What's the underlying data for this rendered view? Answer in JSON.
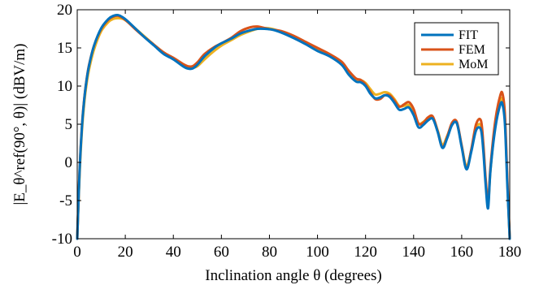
{
  "chart_data": {
    "type": "line",
    "xlabel": "Inclination angle θ (degrees)",
    "ylabel": "|E_θ^ref(90°, θ)| (dBV/m)",
    "xlim": [
      0,
      180
    ],
    "ylim": [
      -10,
      20
    ],
    "xticks": [
      0,
      20,
      40,
      60,
      80,
      100,
      120,
      140,
      160,
      180
    ],
    "yticks": [
      -10,
      -5,
      0,
      5,
      10,
      15,
      20
    ],
    "grid": false,
    "legend_position": "top-right",
    "series": [
      {
        "name": "FIT",
        "color": "#0072BD",
        "x": [
          0,
          1,
          2,
          3,
          4,
          5,
          7,
          10,
          13,
          15,
          17,
          19,
          21,
          24,
          28,
          32,
          36,
          40,
          44,
          46,
          48,
          50,
          53,
          57,
          60,
          64,
          68,
          72,
          75,
          78,
          81,
          85,
          90,
          95,
          100,
          105,
          110,
          113,
          116,
          118,
          120,
          122,
          124,
          126,
          128,
          130,
          132,
          134,
          136,
          138,
          140,
          142,
          144,
          146,
          148,
          150,
          152,
          154,
          156,
          158,
          160,
          162,
          164,
          166,
          168,
          169,
          170,
          171,
          172,
          174,
          176,
          177,
          178,
          179,
          180
        ],
        "values": [
          -10,
          -1.0,
          4.8,
          8.5,
          11.0,
          12.8,
          15.3,
          17.6,
          18.8,
          19.2,
          19.3,
          19.0,
          18.5,
          17.6,
          16.4,
          15.3,
          14.2,
          13.5,
          12.6,
          12.3,
          12.3,
          12.8,
          13.9,
          15.0,
          15.6,
          16.2,
          16.9,
          17.3,
          17.5,
          17.5,
          17.4,
          17.0,
          16.3,
          15.5,
          14.6,
          13.9,
          12.8,
          11.5,
          10.6,
          10.5,
          10.0,
          9.0,
          8.4,
          8.5,
          8.8,
          8.6,
          7.8,
          6.9,
          7.0,
          7.2,
          6.2,
          4.6,
          4.9,
          5.5,
          5.7,
          4.0,
          1.9,
          3.2,
          4.9,
          5.1,
          2.0,
          -0.9,
          1.4,
          4.2,
          4.3,
          1.5,
          -3.0,
          -6.0,
          -1.0,
          4.5,
          7.5,
          7.6,
          5.0,
          -3.0,
          -10
        ]
      },
      {
        "name": "FEM",
        "color": "#D95319",
        "x": [
          0,
          1,
          2,
          3,
          4,
          5,
          7,
          10,
          13,
          15,
          17,
          19,
          21,
          24,
          28,
          32,
          36,
          40,
          44,
          46,
          48,
          50,
          53,
          57,
          60,
          64,
          68,
          72,
          75,
          78,
          81,
          85,
          90,
          95,
          100,
          105,
          110,
          113,
          116,
          118,
          120,
          122,
          124,
          126,
          128,
          130,
          132,
          134,
          136,
          138,
          140,
          142,
          144,
          146,
          148,
          150,
          152,
          154,
          156,
          158,
          160,
          162,
          164,
          166,
          168,
          169,
          170,
          171,
          172,
          174,
          176,
          177,
          178,
          179,
          180
        ],
        "values": [
          -10,
          -0.8,
          5.0,
          8.6,
          11.1,
          12.9,
          15.3,
          17.5,
          18.7,
          19.1,
          19.2,
          18.9,
          18.4,
          17.5,
          16.4,
          15.4,
          14.4,
          13.7,
          12.9,
          12.6,
          12.6,
          13.1,
          14.2,
          15.1,
          15.6,
          16.3,
          17.2,
          17.7,
          17.8,
          17.6,
          17.4,
          17.2,
          16.6,
          15.8,
          15.0,
          14.2,
          13.2,
          12.0,
          11.0,
          10.8,
          10.2,
          9.2,
          8.3,
          8.3,
          8.8,
          8.8,
          8.1,
          7.3,
          7.6,
          7.9,
          7.0,
          5.1,
          5.2,
          5.9,
          6.0,
          4.1,
          2.0,
          3.4,
          5.2,
          5.3,
          2.2,
          -0.8,
          1.7,
          5.0,
          5.5,
          2.5,
          -2.2,
          -5.3,
          -0.5,
          5.5,
          8.7,
          9.0,
          6.3,
          -2.0,
          -10
        ]
      },
      {
        "name": "MoM",
        "color": "#EDB120",
        "x": [
          0,
          1,
          2,
          3,
          4,
          5,
          7,
          10,
          13,
          15,
          17,
          19,
          21,
          24,
          28,
          32,
          36,
          40,
          44,
          46,
          48,
          50,
          53,
          57,
          60,
          64,
          68,
          72,
          75,
          78,
          81,
          85,
          90,
          95,
          100,
          105,
          110,
          113,
          116,
          118,
          120,
          122,
          124,
          126,
          128,
          130,
          132,
          134,
          136,
          138,
          140,
          142,
          144,
          146,
          148,
          150,
          152,
          154,
          156,
          158,
          160,
          162,
          164,
          166,
          168,
          169,
          170,
          171,
          172,
          174,
          176,
          177,
          178,
          179,
          180
        ],
        "values": [
          -10,
          -1.5,
          4.3,
          8.0,
          10.5,
          12.3,
          14.8,
          17.2,
          18.4,
          18.8,
          18.9,
          18.8,
          18.4,
          17.6,
          16.5,
          15.4,
          14.4,
          13.6,
          12.8,
          12.5,
          12.4,
          12.6,
          13.5,
          14.6,
          15.3,
          16.0,
          16.7,
          17.2,
          17.5,
          17.6,
          17.5,
          17.1,
          16.5,
          15.7,
          14.8,
          14.1,
          13.0,
          11.9,
          10.9,
          10.8,
          10.4,
          9.6,
          8.9,
          9.0,
          9.2,
          9.0,
          8.3,
          7.4,
          7.4,
          7.5,
          6.6,
          5.1,
          5.3,
          5.8,
          5.9,
          4.2,
          2.3,
          3.5,
          5.0,
          5.1,
          2.2,
          -0.5,
          1.6,
          4.5,
          4.8,
          2.0,
          -2.5,
          -5.5,
          -1.0,
          5.0,
          8.0,
          8.2,
          5.6,
          -2.5,
          -10
        ]
      }
    ]
  }
}
